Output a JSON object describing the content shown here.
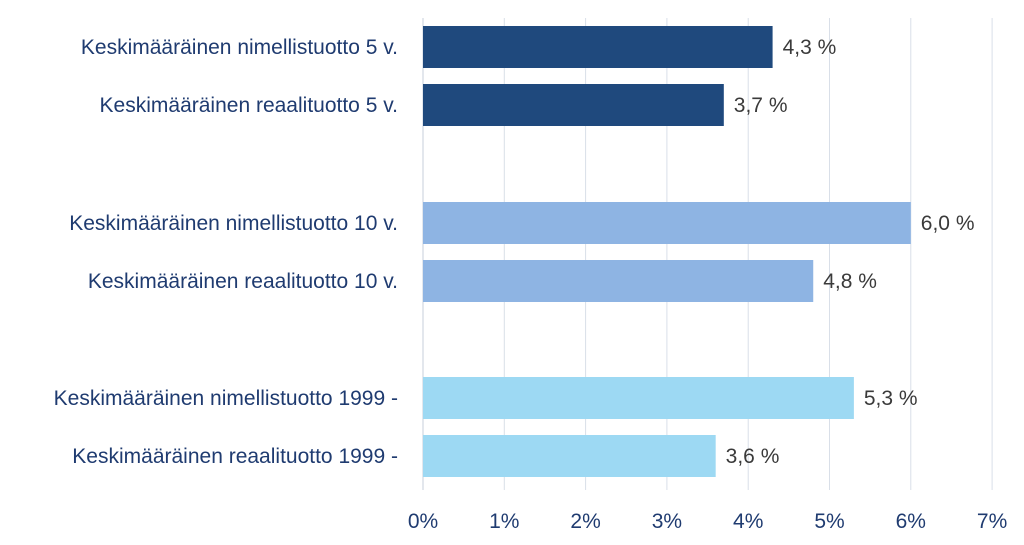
{
  "chart_data": {
    "type": "bar",
    "orientation": "horizontal",
    "categories": [
      "Keskimääräinen nimellistuotto 5 v.",
      "Keskimääräinen reaalituotto 5 v.",
      "Keskimääräinen nimellistuotto 10 v.",
      "Keskimääräinen reaalituotto 10 v.",
      "Keskimääräinen nimellistuotto 1999 -",
      "Keskimääräinen reaalituotto 1999 -"
    ],
    "values": [
      4.3,
      3.7,
      6.0,
      4.8,
      5.3,
      3.6
    ],
    "data_labels": [
      "4,3 %",
      "3,7 %",
      "6,0 %",
      "4,8 %",
      "5,3 %",
      "3,6 %"
    ],
    "groups": [
      0,
      0,
      1,
      1,
      2,
      2
    ],
    "bar_colors": [
      "#1f497d",
      "#1f497d",
      "#8eb4e3",
      "#8eb4e3",
      "#9dd9f3",
      "#9dd9f3"
    ],
    "xlim": [
      0,
      7
    ],
    "x_ticks": [
      0,
      1,
      2,
      3,
      4,
      5,
      6,
      7
    ],
    "x_tick_labels": [
      "0%",
      "1%",
      "2%",
      "3%",
      "4%",
      "5%",
      "6%",
      "7%"
    ],
    "grid": true,
    "legend": "none",
    "title": "",
    "xlabel": "",
    "ylabel": ""
  }
}
